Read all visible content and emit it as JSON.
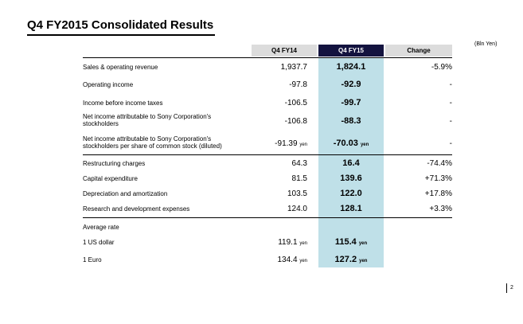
{
  "title": "Q4 FY2015  Consolidated Results",
  "unit_label": "(Bln Yen)",
  "headers": {
    "col1": "Q4 FY14",
    "col2": "Q4 FY15",
    "col3": "Change"
  },
  "yen_suffix": "yen",
  "rows": [
    {
      "label": "Sales & operating revenue",
      "v1": "1,937.7",
      "v2": "1,824.1",
      "v3": "-5.9%"
    },
    {
      "label": "Operating income",
      "v1": "-97.8",
      "v2": "-92.9",
      "v3": "-"
    },
    {
      "label": "Income before income taxes",
      "v1": "-106.5",
      "v2": "-99.7",
      "v3": "-"
    },
    {
      "label": "Net income attributable to Sony Corporation's",
      "label2": "stockholders",
      "v1": "-106.8",
      "v2": "-88.3",
      "v3": "-"
    },
    {
      "label": "Net income attributable to Sony Corporation's",
      "label2": "stockholders per share of common stock (diluted)",
      "v1": "-91.39",
      "v2": "-70.03",
      "v3": "-"
    },
    {
      "label": "Restructuring charges",
      "v1": "64.3",
      "v2": "16.4",
      "v3": "-74.4%"
    },
    {
      "label": "Capital expenditure",
      "v1": "81.5",
      "v2": "139.6",
      "v3": "+71.3%"
    },
    {
      "label": "Depreciation and amortization",
      "v1": "103.5",
      "v2": "122.0",
      "v3": "+17.8%"
    },
    {
      "label": "Research and development expenses",
      "v1": "124.0",
      "v2": "128.1",
      "v3": "+3.3%"
    },
    {
      "label": "Average rate"
    },
    {
      "label": "1 US dollar",
      "v1": "119.1",
      "v2": "115.4"
    },
    {
      "label": "1 Euro",
      "v1": "134.4",
      "v2": "127.2"
    }
  ],
  "page_number": "2"
}
